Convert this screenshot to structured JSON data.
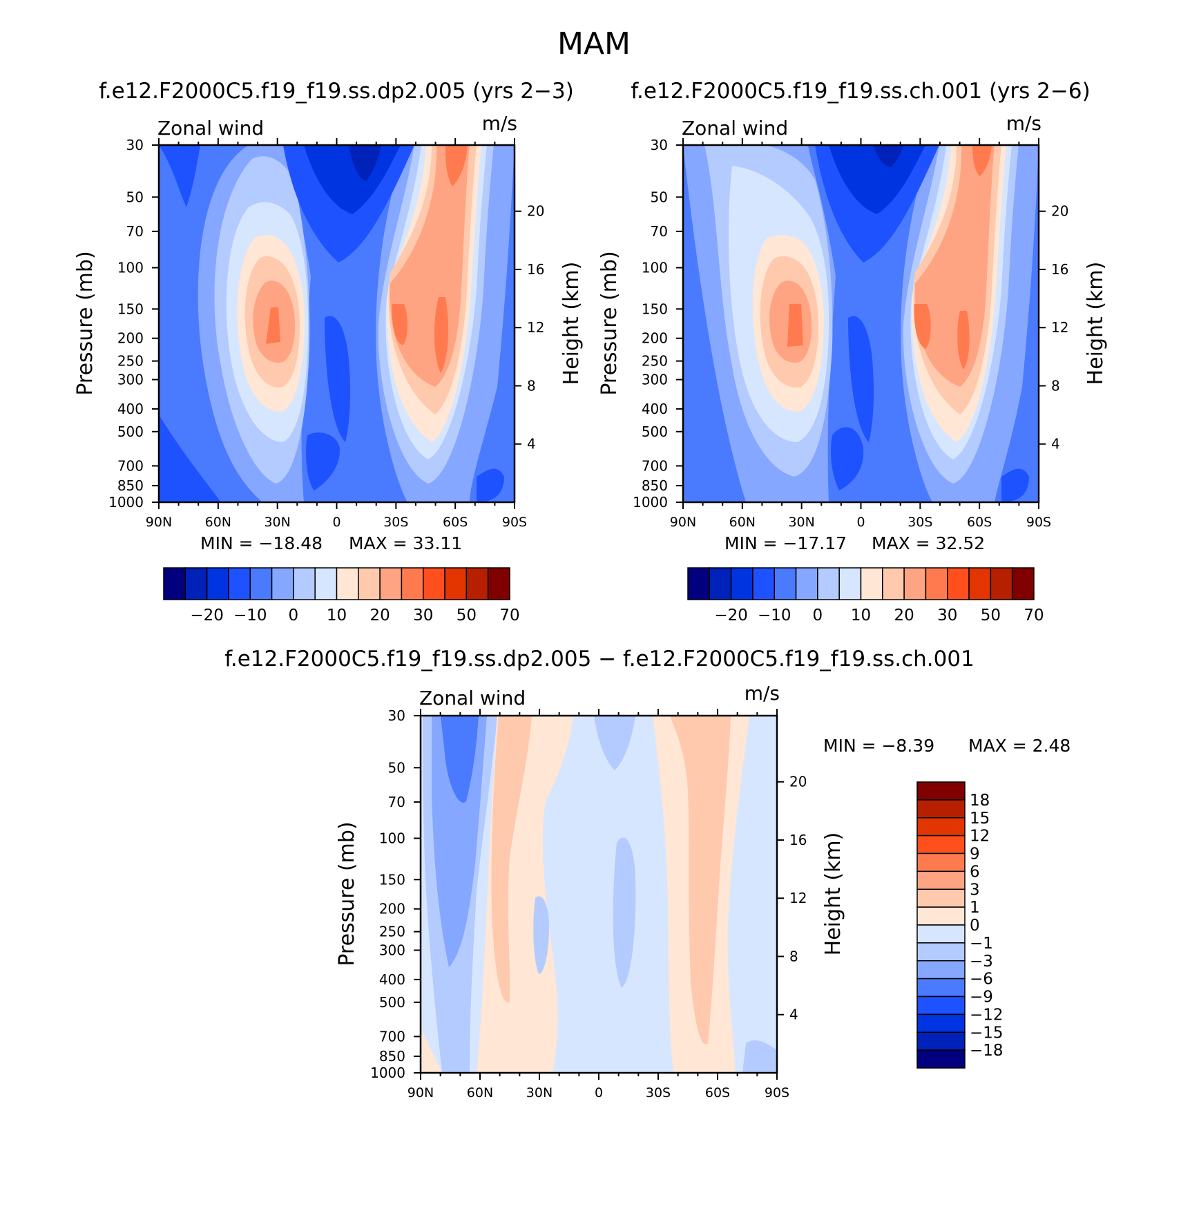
{
  "title": "MAM",
  "chart_data": [
    {
      "type": "heatmap",
      "title": "f.e12.F2000C5.f19_f19.ss.dp2.005 (yrs 2−3)",
      "left_label": "Zonal wind",
      "right_label": "m/s",
      "xlabel": "",
      "ylabel": "Pressure (mb)",
      "ylabel_right": "Height (km)",
      "x_ticks": [
        "90N",
        "60N",
        "30N",
        "0",
        "30S",
        "60S",
        "90S"
      ],
      "y_ticks": [
        "30",
        "50",
        "70",
        "100",
        "150",
        "200",
        "250",
        "300",
        "400",
        "500",
        "700",
        "850",
        "1000"
      ],
      "y_right_ticks": [
        "20",
        "16",
        "12",
        "8",
        "4"
      ],
      "min_text": "MIN = −18.48",
      "max_text": "MAX = 33.11",
      "min": -18.48,
      "max": 33.11,
      "colorbar_labels": [
        "−20",
        "−10",
        "0",
        "10",
        "20",
        "30",
        "50",
        "70"
      ],
      "colorbar_colors": [
        "#03007f",
        "#0022b8",
        "#0034e0",
        "#1f52ff",
        "#4a7bff",
        "#85a7ff",
        "#b3cbff",
        "#d7e6ff",
        "#ffe6d5",
        "#ffc9ad",
        "#ffa482",
        "#ff7b4f",
        "#ff4f1c",
        "#e23500",
        "#b62000",
        "#800000"
      ]
    },
    {
      "type": "heatmap",
      "title": "f.e12.F2000C5.f19_f19.ss.ch.001 (yrs 2−6)",
      "left_label": "Zonal wind",
      "right_label": "m/s",
      "xlabel": "",
      "ylabel": "Pressure (mb)",
      "ylabel_right": "Height (km)",
      "x_ticks": [
        "90N",
        "60N",
        "30N",
        "0",
        "30S",
        "60S",
        "90S"
      ],
      "y_ticks": [
        "30",
        "50",
        "70",
        "100",
        "150",
        "200",
        "250",
        "300",
        "400",
        "500",
        "700",
        "850",
        "1000"
      ],
      "y_right_ticks": [
        "20",
        "16",
        "12",
        "8",
        "4"
      ],
      "min_text": "MIN = −17.17",
      "max_text": "MAX = 32.52",
      "min": -17.17,
      "max": 32.52,
      "colorbar_labels": [
        "−20",
        "−10",
        "0",
        "10",
        "20",
        "30",
        "50",
        "70"
      ],
      "colorbar_colors": [
        "#03007f",
        "#0022b8",
        "#0034e0",
        "#1f52ff",
        "#4a7bff",
        "#85a7ff",
        "#b3cbff",
        "#d7e6ff",
        "#ffe6d5",
        "#ffc9ad",
        "#ffa482",
        "#ff7b4f",
        "#ff4f1c",
        "#e23500",
        "#b62000",
        "#800000"
      ]
    },
    {
      "type": "heatmap",
      "title": "f.e12.F2000C5.f19_f19.ss.dp2.005 − f.e12.F2000C5.f19_f19.ss.ch.001",
      "left_label": "Zonal wind",
      "right_label": "m/s",
      "xlabel": "",
      "ylabel": "Pressure (mb)",
      "ylabel_right": "Height (km)",
      "x_ticks": [
        "90N",
        "60N",
        "30N",
        "0",
        "30S",
        "60S",
        "90S"
      ],
      "y_ticks": [
        "30",
        "50",
        "70",
        "100",
        "150",
        "200",
        "250",
        "300",
        "400",
        "500",
        "700",
        "850",
        "1000"
      ],
      "y_right_ticks": [
        "20",
        "16",
        "12",
        "8",
        "4"
      ],
      "min_text": "MIN = −8.39",
      "max_text": "MAX = 2.48",
      "min": -8.39,
      "max": 2.48,
      "colorbar_labels": [
        "18",
        "15",
        "12",
        "9",
        "6",
        "3",
        "1",
        "0",
        "−1",
        "−3",
        "−6",
        "−9",
        "−12",
        "−15",
        "−18"
      ],
      "colorbar_colors": [
        "#800000",
        "#b62000",
        "#e23500",
        "#ff4f1c",
        "#ff7b4f",
        "#ffa482",
        "#ffc9ad",
        "#ffe6d5",
        "#d7e6ff",
        "#b3cbff",
        "#85a7ff",
        "#4a7bff",
        "#1f52ff",
        "#0034e0",
        "#0022b8",
        "#03007f"
      ]
    }
  ]
}
